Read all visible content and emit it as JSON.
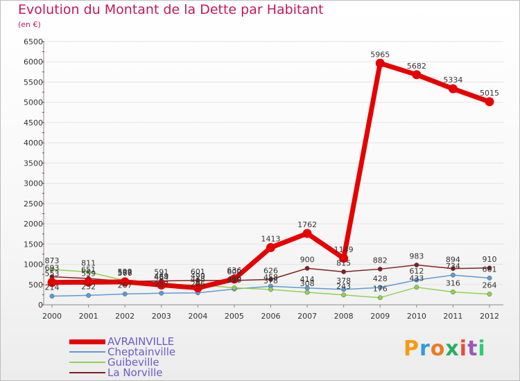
{
  "header": {
    "title": "Evolution du Montant de la Dette par Habitant",
    "unit": "(en €)"
  },
  "logo": {
    "letters": [
      "P",
      "r",
      "o",
      "x",
      "i",
      "t",
      "i"
    ],
    "colors": [
      "#f39c12",
      "#3498db",
      "#e67e22",
      "#27ae60",
      "#e74c3c",
      "#9b59b6",
      "#2ecc71"
    ]
  },
  "chart_data": {
    "type": "line",
    "title": "Evolution du Montant de la Dette par Habitant",
    "ylabel": "(en €)",
    "xlabel": "",
    "ylim": [
      0,
      6500
    ],
    "yticks": [
      0,
      500,
      1000,
      1500,
      2000,
      2500,
      3000,
      3500,
      4000,
      4500,
      5000,
      5500,
      6000,
      6500
    ],
    "categories": [
      "2000",
      "2001",
      "2002",
      "2003",
      "2004",
      "2005",
      "2006",
      "2007",
      "2008",
      "2009",
      "2010",
      "2011",
      "2012"
    ],
    "grid": true,
    "legend_position": "bottom-left",
    "series": [
      {
        "name": "AVRAINVILLE",
        "color": "#e60000",
        "values": [
          553,
          559,
          566,
          489,
          418,
          636,
          1413,
          1762,
          1149,
          5965,
          5682,
          5334,
          5015
        ],
        "labels": [
          "553",
          "559",
          "566",
          "489",
          "418",
          "636",
          "1413",
          "1762",
          "1149",
          "5965",
          "5682",
          "5334",
          "5015"
        ]
      },
      {
        "name": "Cheptainville",
        "color": "#5b9bd5",
        "values": [
          214,
          232,
          267,
          287,
          296,
          390,
          458,
          414,
          378,
          428,
          612,
          734,
          661
        ],
        "labels": [
          "214",
          "232",
          "267",
          "287",
          "296",
          "390",
          "458",
          "414",
          "378",
          "428",
          "612",
          "734",
          "661"
        ]
      },
      {
        "name": "Guibeville",
        "color": "#8fd14f",
        "values": [
          873,
          811,
          599,
          464,
          499,
          419,
          378,
          308,
          243,
          176,
          433,
          316,
          264
        ],
        "labels": [
          "873",
          "811",
          "599",
          "464",
          "499",
          "419",
          "378",
          "308",
          "243",
          "176",
          "433",
          "316",
          "264"
        ]
      },
      {
        "name": "La Norville",
        "color": "#7f1f1f",
        "values": [
          693,
          651,
          577,
          591,
          601,
          600,
          626,
          900,
          815,
          882,
          983,
          894,
          910
        ],
        "labels": [
          "693",
          "651",
          "577",
          "591",
          "601",
          "600",
          "626",
          "900",
          "815",
          "882",
          "983",
          "894",
          "910"
        ]
      }
    ]
  }
}
